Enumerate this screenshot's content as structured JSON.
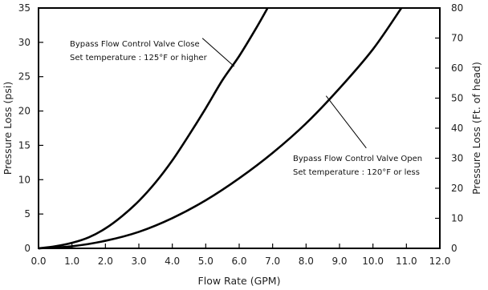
{
  "chart_data": {
    "type": "line",
    "xlabel": "Flow Rate (GPM)",
    "ylabel": "Pressure Loss (psi)",
    "y2label": "Pressure Loss (Ft. of head)",
    "xlim": [
      0,
      12
    ],
    "ylim": [
      0,
      35
    ],
    "y2lim": [
      0,
      80
    ],
    "x_ticks": [
      "0.0",
      "1.0",
      "2.0",
      "3.0",
      "4.0",
      "5.0",
      "6.0",
      "7.0",
      "8.0",
      "9.0",
      "10.0",
      "11.0",
      "12.0"
    ],
    "y_ticks": [
      "0",
      "5",
      "10",
      "15",
      "20",
      "25",
      "30",
      "35"
    ],
    "y2_ticks": [
      "0",
      "10",
      "20",
      "30",
      "40",
      "50",
      "60",
      "70",
      "80"
    ],
    "grid": false,
    "series": [
      {
        "x": [
          0,
          0.5,
          1.0,
          1.5,
          2.0,
          2.5,
          3.0,
          3.5,
          4.0,
          4.5,
          5.0,
          5.5,
          6.0,
          6.5,
          6.85
        ],
        "y": [
          0,
          0.3,
          0.8,
          1.6,
          2.9,
          4.7,
          6.9,
          9.6,
          12.8,
          16.5,
          20.4,
          24.5,
          28.0,
          32.0,
          35.0
        ]
      },
      {
        "x": [
          0,
          1.0,
          2.0,
          3.0,
          4.0,
          5.0,
          6.0,
          7.0,
          8.0,
          9.0,
          10.0,
          10.85
        ],
        "y": [
          0,
          0.3,
          1.1,
          2.4,
          4.4,
          7.0,
          10.2,
          13.9,
          18.2,
          23.3,
          29.0,
          35.0
        ]
      }
    ],
    "annotations": [
      {
        "lines": [
          "Bypass Flow Control Valve Close",
          "Set temperature : 125°F or higher"
        ],
        "target": [
          5.85,
          26.5
        ],
        "anchor": [
          4.9,
          30.6
        ]
      },
      {
        "lines": [
          "Bypass Flow Control Valve Open",
          "Set temperature : 120°F or less"
        ],
        "target": [
          8.6,
          22.2
        ],
        "anchor": [
          9.8,
          14.6
        ]
      }
    ]
  }
}
